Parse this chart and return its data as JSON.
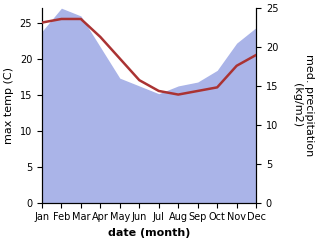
{
  "months": [
    "Jan",
    "Feb",
    "Mar",
    "Apr",
    "May",
    "Jun",
    "Jul",
    "Aug",
    "Sep",
    "Oct",
    "Nov",
    "Dec"
  ],
  "temp_line": [
    25.0,
    25.5,
    25.5,
    23.0,
    20.0,
    17.0,
    15.5,
    15.0,
    15.5,
    16.0,
    19.0,
    20.5
  ],
  "precip_area": [
    22.0,
    25.0,
    24.0,
    20.0,
    16.0,
    15.0,
    14.0,
    15.0,
    15.5,
    17.0,
    20.5,
    22.5
  ],
  "temp_color": "#aa3333",
  "precip_color": "#aab4e8",
  "ylim_left": [
    0,
    27
  ],
  "ylim_right": [
    0,
    25
  ],
  "yticks_left": [
    0,
    5,
    10,
    15,
    20,
    25
  ],
  "yticks_right": [
    0,
    5,
    10,
    15,
    20,
    25
  ],
  "xlabel": "date (month)",
  "ylabel_left": "max temp (C)",
  "ylabel_right": "med. precipitation\n(kg/m2)",
  "xlabel_fontsize": 8,
  "ylabel_fontsize": 8,
  "tick_fontsize": 7
}
